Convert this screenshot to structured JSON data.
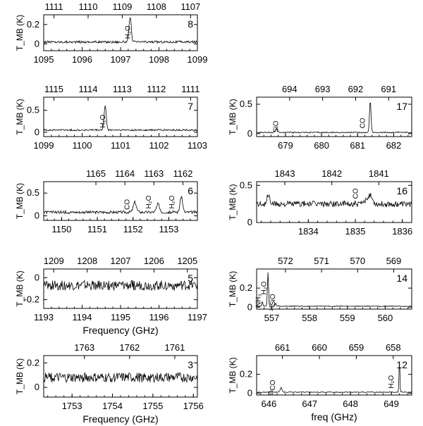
{
  "chart_data": [
    {
      "type": "line",
      "band": "8",
      "xlabel": "",
      "ylabel": "T_MB (K)",
      "x_range": [
        1095,
        1099
      ],
      "x_ticks": [
        "1095",
        "1096",
        "1097",
        "1098",
        "1099"
      ],
      "top_x_range": [
        1111.3,
        1106.8
      ],
      "top_ticks": [
        "1111",
        "1110",
        "1109",
        "1108",
        "1107"
      ],
      "y_range": [
        -0.07,
        0.3
      ],
      "y_ticks": [
        "0",
        "0.2"
      ],
      "baseline": 0.02,
      "noise": 0.012,
      "peaks": [
        {
          "x": 1097.25,
          "height": 0.26,
          "width": 0.04
        }
      ],
      "annotations": [
        {
          "text": "H₂O",
          "x": 1097.25,
          "y": 0.12
        }
      ]
    },
    {
      "type": "line",
      "band": "7",
      "xlabel": "",
      "ylabel": "T_MB (K)",
      "x_range": [
        1099,
        1103
      ],
      "x_ticks": [
        "1099",
        "1100",
        "1101",
        "1102",
        "1103"
      ],
      "top_x_range": [
        1115.3,
        1110.8
      ],
      "top_ticks": [
        "1115",
        "1114",
        "1113",
        "1112",
        "1111"
      ],
      "y_range": [
        -0.1,
        0.8
      ],
      "y_ticks": [
        "0",
        "0.5"
      ],
      "baseline": 0.05,
      "noise": 0.02,
      "peaks": [
        {
          "x": 1100.6,
          "height": 0.55,
          "width": 0.04
        }
      ],
      "annotations": [
        {
          "text": "H₂O",
          "x": 1100.6,
          "y": 0.25
        }
      ]
    },
    {
      "type": "line",
      "band": "6",
      "xlabel": "",
      "ylabel": "T_MB (K)",
      "x_range": [
        1149.5,
        1153.8
      ],
      "x_ticks": [
        "1150",
        "1151",
        "1152",
        "1153"
      ],
      "top_x_range": [
        1166.8,
        1161.5
      ],
      "top_ticks": [
        "1165",
        "1164",
        "1163",
        "1162"
      ],
      "y_range": [
        -0.1,
        0.75
      ],
      "y_ticks": [
        "0",
        "0.5"
      ],
      "baseline": 0.08,
      "noise": 0.03,
      "peaks": [
        {
          "x": 1152.05,
          "height": 0.22,
          "width": 0.06
        },
        {
          "x": 1152.7,
          "height": 0.18,
          "width": 0.06
        },
        {
          "x": 1153.35,
          "height": 0.35,
          "width": 0.05
        }
      ],
      "annotations": [
        {
          "text": "CO",
          "x": 1151.9,
          "y": 0.25
        },
        {
          "text": "H₂O",
          "x": 1152.5,
          "y": 0.3
        },
        {
          "text": "H₂O",
          "x": 1153.15,
          "y": 0.3
        }
      ]
    },
    {
      "type": "line",
      "band": "5",
      "xlabel": "Frequency (GHz)",
      "ylabel": "T_MB (K)",
      "x_range": [
        1193,
        1197
      ],
      "x_ticks": [
        "1193",
        "1194",
        "1195",
        "1196",
        "1197"
      ],
      "top_x_range": [
        1209.3,
        1204.7
      ],
      "top_ticks": [
        "1209",
        "1208",
        "1207",
        "1206",
        "1205"
      ],
      "y_range": [
        -0.28,
        0.08
      ],
      "y_ticks": [
        "-0.2",
        "0"
      ],
      "baseline": -0.07,
      "noise": 0.045,
      "peaks": [],
      "annotations": []
    },
    {
      "type": "line",
      "band": "3",
      "xlabel": "Frequency (GHz)",
      "ylabel": "T_MB (K)",
      "x_range": [
        1752.3,
        1756.1
      ],
      "x_ticks": [
        "1753",
        "1754",
        "1755",
        "1756"
      ],
      "top_x_range": [
        1763.9,
        1760.5
      ],
      "top_ticks": [
        "1763",
        "1762",
        "1761"
      ],
      "y_range": [
        -0.08,
        0.26
      ],
      "y_ticks": [
        "0",
        "0.2"
      ],
      "baseline": 0.08,
      "noise": 0.04,
      "peaks": [],
      "annotations": []
    },
    {
      "type": "line",
      "band": "17",
      "xlabel": "",
      "ylabel": "T_MB (K)",
      "x_range": [
        678.2,
        682.5
      ],
      "x_ticks": [
        "679",
        "680",
        "681",
        "682"
      ],
      "top_x_range": [
        695.0,
        690.3
      ],
      "top_ticks": [
        "694",
        "693",
        "692",
        "691"
      ],
      "y_range": [
        -0.05,
        0.62
      ],
      "y_ticks": [
        "0",
        "0.5"
      ],
      "baseline": 0.02,
      "noise": 0.01,
      "peaks": [
        {
          "x": 681.35,
          "height": 0.54,
          "width": 0.03
        },
        {
          "x": 678.75,
          "height": 0.05,
          "width": 0.05
        }
      ],
      "annotations": [
        {
          "text": "SiO",
          "x": 678.8,
          "y": 0.12
        },
        {
          "text": "CO",
          "x": 681.2,
          "y": 0.18
        }
      ]
    },
    {
      "type": "line",
      "band": "16",
      "xlabel": "",
      "ylabel": "T_MB (K)",
      "x_range": [
        1832.9,
        1836.2
      ],
      "x_ticks": [
        "1834",
        "1835",
        "1836"
      ],
      "top_x_range": [
        1843.6,
        1840.3
      ],
      "top_ticks": [
        "1843",
        "1842",
        "1841"
      ],
      "y_range": [
        0,
        0.55
      ],
      "y_ticks": [
        "0",
        "0.5"
      ],
      "baseline": 0.25,
      "noise": 0.04,
      "peaks": [
        {
          "x": 1833.15,
          "height": 0.12,
          "width": 0.04
        },
        {
          "x": 1835.3,
          "height": 0.12,
          "width": 0.08
        }
      ],
      "annotations": [
        {
          "text": "CO",
          "x": 1835.05,
          "y": 0.39
        }
      ]
    },
    {
      "type": "line",
      "band": "14",
      "xlabel": "",
      "ylabel": "T_MB (K)",
      "x_range": [
        556.6,
        560.7
      ],
      "x_ticks": [
        "557",
        "558",
        "559",
        "560"
      ],
      "top_x_range": [
        572.8,
        568.5
      ],
      "top_ticks": [
        "572",
        "571",
        "570",
        "569"
      ],
      "y_range": [
        -0.02,
        0.4
      ],
      "y_ticks": [
        "0",
        "0.2"
      ],
      "baseline": 0.01,
      "noise": 0.005,
      "peaks": [
        {
          "x": 556.9,
          "height": 0.36,
          "width": 0.02
        },
        {
          "x": 556.75,
          "height": 0.05,
          "width": 0.02
        },
        {
          "x": 557.1,
          "height": 0.03,
          "width": 0.02
        }
      ],
      "annotations": [
        {
          "text": "NH₃",
          "x": 556.7,
          "y": 0.07
        },
        {
          "text": "H₂O",
          "x": 556.85,
          "y": 0.2
        },
        {
          "text": "²⁹SiO",
          "x": 557.08,
          "y": 0.05
        }
      ]
    },
    {
      "type": "line",
      "band": "12",
      "xlabel": "freq (GHz)",
      "ylabel": "T_MB (K)",
      "x_range": [
        645.7,
        649.5
      ],
      "x_ticks": [
        "646",
        "647",
        "648",
        "649"
      ],
      "top_x_range": [
        661.7,
        657.5
      ],
      "top_ticks": [
        "661",
        "660",
        "659",
        "658"
      ],
      "y_range": [
        -0.02,
        0.4
      ],
      "y_ticks": [
        "0",
        "0.2"
      ],
      "baseline": 0.01,
      "noise": 0.004,
      "peaks": [
        {
          "x": 646.3,
          "height": 0.05,
          "width": 0.03
        },
        {
          "x": 649.2,
          "height": 0.34,
          "width": 0.015
        }
      ],
      "annotations": [
        {
          "text": "¹³CO",
          "x": 646.15,
          "y": 0.06
        },
        {
          "text": "H₂O",
          "x": 649.05,
          "y": 0.12
        }
      ]
    }
  ]
}
